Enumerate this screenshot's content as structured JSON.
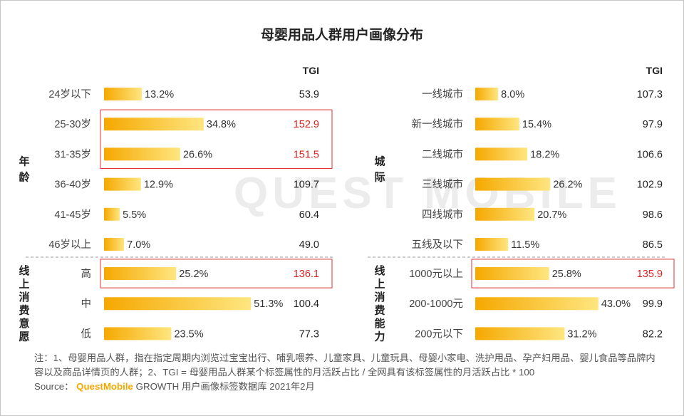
{
  "chart_data": {
    "type": "bar",
    "title": "母婴用品人群用户画像分布",
    "tgi_header": "TGI",
    "value_suffix": "%",
    "watermark": "QUEST MOBILE",
    "colors": {
      "bar_start": "#f5a800",
      "bar_end": "#ffe680",
      "highlight": "#e02020",
      "box": "#e03030"
    },
    "panels": [
      {
        "side": "left",
        "groups": [
          {
            "label": "年龄",
            "categories": [
              "24岁以下",
              "25-30岁",
              "31-35岁",
              "36-40岁",
              "41-45岁",
              "46岁以上"
            ],
            "values": [
              13.2,
              34.8,
              26.6,
              12.9,
              5.5,
              7.0
            ],
            "tgi": [
              "53.9",
              "152.9",
              "151.5",
              "109.7",
              "60.4",
              "49.0"
            ],
            "highlight": [
              false,
              true,
              true,
              false,
              false,
              false
            ]
          },
          {
            "label": "线上消费意愿",
            "categories": [
              "高",
              "中",
              "低"
            ],
            "values": [
              25.2,
              51.3,
              23.5
            ],
            "tgi": [
              "136.1",
              "100.4",
              "77.3"
            ],
            "highlight": [
              true,
              false,
              false
            ]
          }
        ]
      },
      {
        "side": "right",
        "groups": [
          {
            "label": "城际",
            "categories": [
              "一线城市",
              "新一线城市",
              "二线城市",
              "三线城市",
              "四线城市",
              "五线及以下"
            ],
            "values": [
              8.0,
              15.4,
              18.2,
              26.2,
              20.7,
              11.5
            ],
            "tgi": [
              "107.3",
              "97.9",
              "106.6",
              "102.9",
              "98.6",
              "86.5"
            ],
            "highlight": [
              false,
              false,
              false,
              false,
              false,
              false
            ]
          },
          {
            "label": "线上消费能力",
            "categories": [
              "1000元以上",
              "200-1000元",
              "200元以下"
            ],
            "values": [
              25.8,
              43.0,
              31.2
            ],
            "tgi": [
              "135.9",
              "99.9",
              "82.2"
            ],
            "highlight": [
              true,
              false,
              false
            ]
          }
        ]
      }
    ]
  },
  "notes": {
    "note_text": "注：1、母婴用品人群，指在指定周期内浏览过宝宝出行、哺乳喂养、儿童家具、儿童玩具、母婴小家电、洗护用品、孕产妇用品、婴儿食品等品牌内容以及商品详情页的人群；2、TGI = 母婴用品人群某个标签属性的月活跃占比 / 全网具有该标签属性的月活跃占比 * 100",
    "source_label": "Source：",
    "source_brand": "QuestMobile",
    "source_text": "GROWTH 用户画像标签数据库 2021年2月"
  }
}
